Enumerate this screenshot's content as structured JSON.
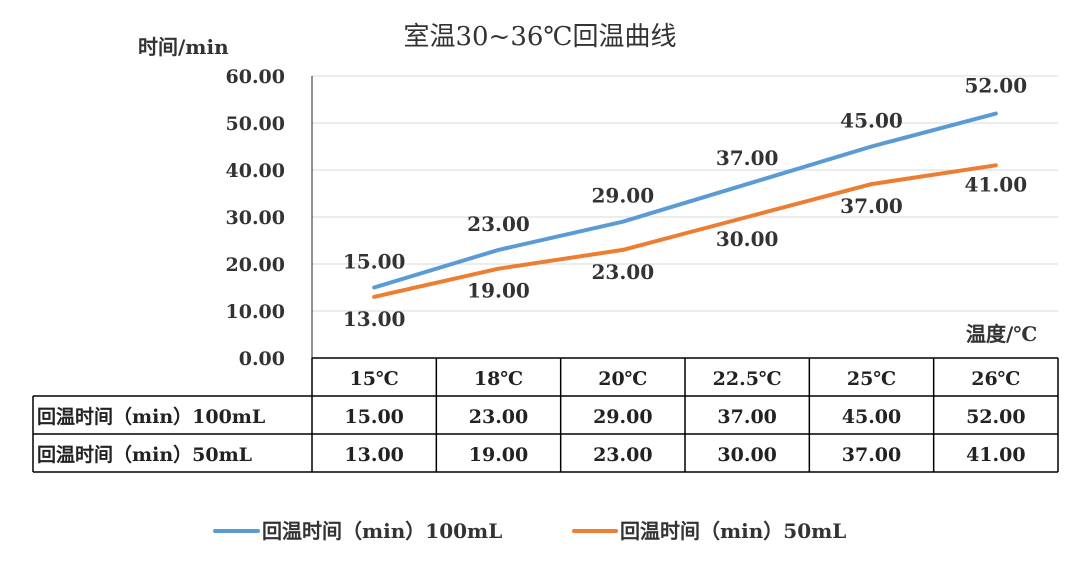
{
  "chart_data": {
    "type": "line",
    "title": "室温30~36℃回温曲线",
    "ylabel": "时间/min",
    "xlabel": "温度/℃",
    "ylim": [
      0,
      60
    ],
    "yticks": [
      "0.00",
      "10.00",
      "20.00",
      "30.00",
      "40.00",
      "50.00",
      "60.00"
    ],
    "grid": true,
    "legend_position": "bottom",
    "categories": [
      "15℃",
      "18℃",
      "20℃",
      "22.5℃",
      "25℃",
      "26℃"
    ],
    "series": [
      {
        "name": "回温时间（min）100mL",
        "color": "#5B9BD5",
        "values": [
          15,
          23,
          29,
          37,
          45,
          52
        ],
        "labels": [
          "15.00",
          "23.00",
          "29.00",
          "37.00",
          "45.00",
          "52.00"
        ]
      },
      {
        "name": "回温时间（min）50mL",
        "color": "#ED7D31",
        "values": [
          13,
          19,
          23,
          30,
          37,
          41
        ],
        "labels": [
          "13.00",
          "19.00",
          "23.00",
          "30.00",
          "37.00",
          "41.00"
        ]
      }
    ]
  }
}
